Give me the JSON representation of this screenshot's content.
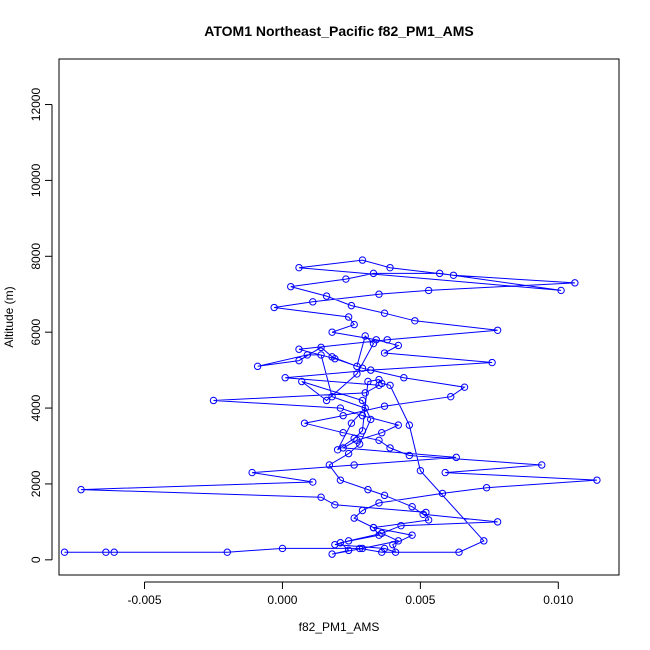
{
  "chart_data": {
    "type": "line",
    "title": "ATOM1 Northeast_Pacific f82_PM1_AMS",
    "xlabel": "f82_PM1_AMS",
    "ylabel": "Altitude (m)",
    "xlim": [
      -0.0081,
      0.0122
    ],
    "ylim": [
      -400,
      13200
    ],
    "xticks": [
      -0.005,
      0.0,
      0.005,
      0.01
    ],
    "xtick_labels": [
      "-0.005",
      "0.000",
      "0.005",
      "0.010"
    ],
    "yticks": [
      0,
      2000,
      4000,
      6000,
      8000,
      10000,
      12000
    ],
    "ytick_labels": [
      "0",
      "2000",
      "4000",
      "6000",
      "8000",
      "10000",
      "12000"
    ],
    "grid": false,
    "series": [
      {
        "color": "#0000ff",
        "marker": "open-circle",
        "x": [
          -0.0079,
          -0.0064,
          -0.0061,
          -0.002,
          0.0,
          0.0028,
          0.0036,
          0.0064,
          0.0073,
          0.005,
          0.0046,
          0.0039,
          0.0036,
          0.0035,
          0.0031,
          0.0029,
          0.0026,
          0.002,
          0.0025,
          0.003,
          0.0018,
          0.0014,
          0.0009,
          -0.0009,
          0.0006,
          0.0014,
          0.0018,
          0.0027,
          0.003,
          0.0033,
          0.0027,
          0.0016,
          0.0007,
          0.0029,
          0.0032,
          0.0028,
          0.0024,
          0.0017,
          0.0021,
          0.0031,
          0.0037,
          0.0047,
          0.0051,
          0.0078,
          0.0043,
          0.0036,
          0.0024,
          0.0019,
          0.0037,
          0.0041,
          0.004,
          0.0047,
          0.0033,
          0.0026,
          0.0029,
          0.0035,
          0.0058,
          0.0074,
          0.0114,
          0.0059,
          0.0094,
          0.0046,
          0.0039,
          0.0035,
          0.0022,
          0.0008,
          0.0022,
          0.0037,
          0.0061,
          0.0066,
          0.0044,
          0.0029,
          0.0019,
          0.0006,
          0.0038,
          0.0078,
          0.0048,
          0.0037,
          0.0025,
          0.0016,
          0.0003,
          0.0023,
          0.0033,
          0.0057,
          0.0101,
          0.0006,
          0.0029,
          0.0039,
          0.0062,
          0.0106,
          0.0053,
          0.0035,
          0.0011,
          -0.0003,
          0.0024,
          0.0026,
          0.0018,
          0.0034,
          0.0042,
          0.0037,
          0.0076,
          0.0032,
          0.0001,
          0.0035,
          0.003,
          -0.0025,
          0.0021,
          0.0029,
          0.0042,
          0.0036,
          0.0027,
          0.0022,
          0.0063,
          0.0026,
          -0.0011,
          0.0011,
          -0.0073,
          0.0014,
          0.0019,
          0.0052,
          0.0053,
          0.0033,
          0.0035,
          0.0021,
          0.0024,
          0.0018,
          0.0029,
          0.0042,
          0.0036
        ],
        "y": [
          200,
          200,
          200,
          200,
          300,
          300,
          200,
          200,
          500,
          2350,
          3550,
          4600,
          4650,
          4750,
          4700,
          3400,
          3200,
          2900,
          3600,
          4000,
          4300,
          5400,
          5400,
          5100,
          5250,
          5600,
          5350,
          5100,
          5900,
          5700,
          4900,
          4200,
          4700,
          4200,
          3700,
          3050,
          2800,
          2500,
          2100,
          1850,
          1700,
          1400,
          1200,
          1000,
          900,
          700,
          500,
          400,
          300,
          200,
          400,
          650,
          850,
          1100,
          1300,
          1500,
          1750,
          1900,
          2100,
          2300,
          2500,
          2750,
          2950,
          3150,
          3350,
          3600,
          3800,
          4050,
          4300,
          4550,
          4800,
          5050,
          5300,
          5550,
          5800,
          6050,
          6300,
          6500,
          6700,
          6950,
          7200,
          7400,
          7550,
          7550,
          7100,
          7700,
          7900,
          7700,
          7500,
          7300,
          7100,
          7000,
          6800,
          6650,
          6400,
          6200,
          6000,
          5800,
          5650,
          5450,
          5200,
          5000,
          4800,
          4600,
          4400,
          4200,
          4000,
          3800,
          3550,
          3350,
          3150,
          2950,
          2700,
          2500,
          2300,
          2050,
          1850,
          1650,
          1450,
          1250,
          1050,
          850,
          650,
          450,
          250,
          150,
          300,
          500,
          700
        ]
      }
    ]
  }
}
